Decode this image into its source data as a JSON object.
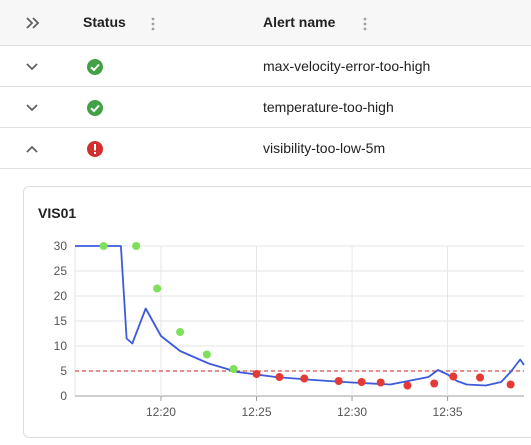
{
  "table": {
    "columns": [
      {
        "label": "Status"
      },
      {
        "label": "Alert name"
      }
    ],
    "rows": [
      {
        "status": "ok",
        "name": "max-velocity-error-too-high",
        "expanded": false
      },
      {
        "status": "ok",
        "name": "temperature-too-high",
        "expanded": false
      },
      {
        "status": "firing",
        "name": "visibility-too-low-5m",
        "expanded": true
      }
    ]
  },
  "icons": {
    "expand_all": "double-chevron-right-icon",
    "row_collapsed": "chevron-down-icon",
    "row_expanded": "chevron-up-icon",
    "status_ok": "check-circle-icon",
    "status_firing": "exclamation-circle-icon",
    "column_menu": "vertical-dots-icon"
  },
  "colors": {
    "ok": "#43a047",
    "firing": "#d32f2f",
    "line": "#3b5bdb",
    "threshold": "#c62828",
    "point_ok": "#7ee05a",
    "point_alert": "#e53935"
  },
  "chart_data": {
    "type": "line",
    "title": "VIS01",
    "x_ticks": [
      "12:20",
      "12:25",
      "12:30",
      "12:35"
    ],
    "y_ticks": [
      0,
      5,
      10,
      15,
      20,
      25,
      30
    ],
    "ylim": [
      0,
      30
    ],
    "xlim_minutes": [
      "12:15.5",
      "12:39"
    ],
    "grid": true,
    "threshold": 5,
    "series": [
      {
        "style": "line",
        "x": [
          "12:15.5",
          "12:17.9",
          "12:18.2",
          "12:18.5",
          "12:19.2",
          "12:20",
          "12:21",
          "12:22.5",
          "12:24",
          "12:26",
          "12:28",
          "12:30",
          "12:32",
          "12:34",
          "12:34.5",
          "12:35",
          "12:35.5",
          "12:36",
          "12:37",
          "12:37.8",
          "12:38.3",
          "12:38.8",
          "12:39"
        ],
        "y": [
          30,
          30,
          11.5,
          10.5,
          17.5,
          12,
          9,
          6.5,
          4.8,
          3.8,
          3.2,
          2.7,
          2.3,
          3.8,
          5.2,
          4.3,
          3,
          2.3,
          2.1,
          2.8,
          4.8,
          7.3,
          6.2
        ]
      },
      {
        "style": "points",
        "color": "#7ee05a",
        "x": [
          "12:17",
          "12:18.7",
          "12:19.8",
          "12:21",
          "12:22.4",
          "12:23.8"
        ],
        "y": [
          30,
          30,
          21.5,
          12.8,
          8.3,
          5.4
        ]
      },
      {
        "style": "points",
        "color": "#e53935",
        "x": [
          "12:25",
          "12:26.2",
          "12:27.5",
          "12:29.3",
          "12:30.5",
          "12:31.5",
          "12:32.9",
          "12:34.3",
          "12:35.3",
          "12:36.7",
          "12:38.3"
        ],
        "y": [
          4.4,
          3.8,
          3.5,
          3.0,
          2.8,
          2.7,
          2.1,
          2.5,
          3.9,
          3.7,
          2.3
        ]
      }
    ]
  }
}
